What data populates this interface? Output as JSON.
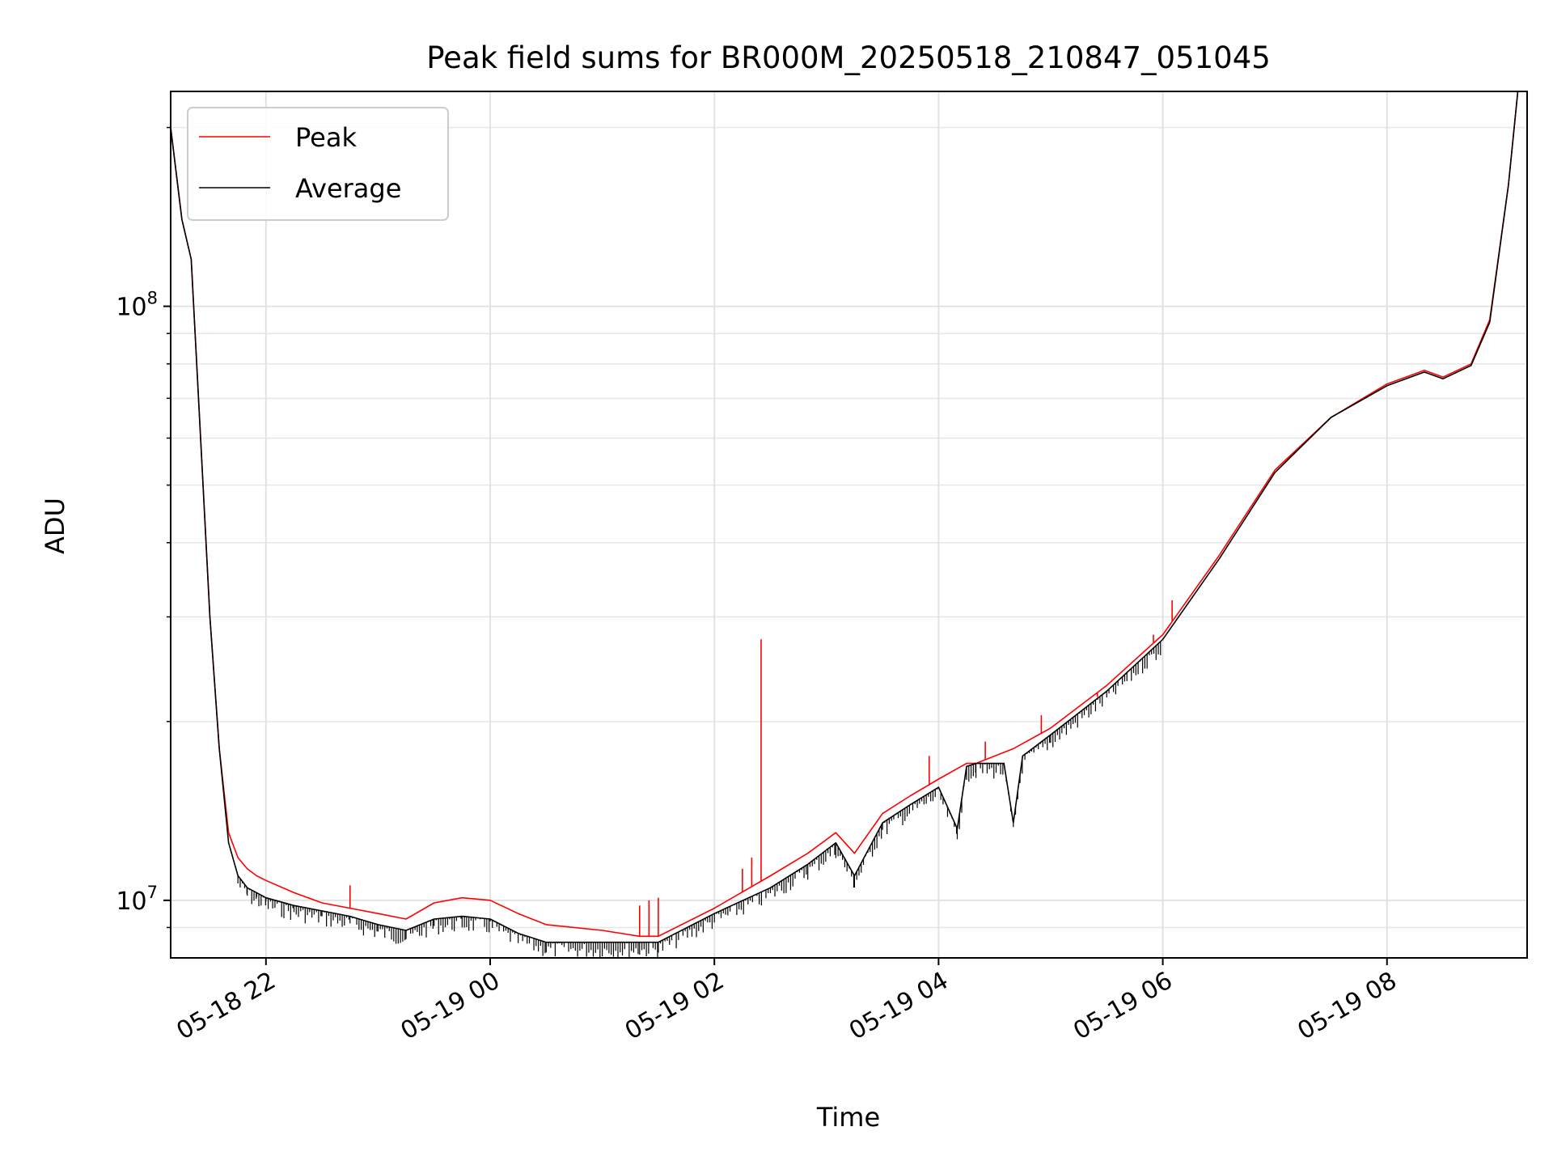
{
  "chart_data": {
    "type": "line",
    "title": "Peak field sums for BR000M_20250518_210847_051045",
    "xlabel": "Time",
    "ylabel": "ADU",
    "yscale": "log",
    "xlim": [
      "05-18 21:09",
      "05-19 09:15"
    ],
    "ylim": [
      8000000,
      230000000
    ],
    "grid": true,
    "legend_position": "upper left",
    "x_ticks": [
      "05-18 22",
      "05-19 00",
      "05-19 02",
      "05-19 04",
      "05-19 06",
      "05-19 08"
    ],
    "y_ticks": [
      {
        "value": 10000000,
        "base": "10",
        "exp": "7"
      },
      {
        "value": 100000000,
        "base": "10",
        "exp": "8"
      }
    ],
    "series": [
      {
        "name": "Peak",
        "color": "#ff0000",
        "x": [
          "05-18 21:09",
          "05-18 21:15",
          "05-18 21:20",
          "05-18 21:25",
          "05-18 21:30",
          "05-18 21:35",
          "05-18 21:40",
          "05-18 21:45",
          "05-18 21:50",
          "05-18 21:55",
          "05-18 22:00",
          "05-18 22:15",
          "05-18 22:30",
          "05-18 22:45",
          "05-18 23:00",
          "05-18 23:15",
          "05-18 23:30",
          "05-18 23:45",
          "05-19 00:00",
          "05-19 00:15",
          "05-19 00:30",
          "05-19 01:00",
          "05-19 01:20",
          "05-19 01:30",
          "05-19 02:00",
          "05-19 02:30",
          "05-19 02:50",
          "05-19 03:05",
          "05-19 03:15",
          "05-19 03:30",
          "05-19 03:45",
          "05-19 04:00",
          "05-19 04:15",
          "05-19 04:20",
          "05-19 04:40",
          "05-19 05:00",
          "05-19 05:30",
          "05-19 06:00",
          "05-19 06:30",
          "05-19 07:00",
          "05-19 07:30",
          "05-19 08:00",
          "05-19 08:20",
          "05-19 08:30",
          "05-19 08:45",
          "05-19 08:55",
          "05-19 09:05",
          "05-19 09:10"
        ],
        "y": [
          200000000,
          140000000,
          120000000,
          60000000,
          30000000,
          18000000,
          13000000,
          11800000,
          11300000,
          11000000,
          10800000,
          10300000,
          9900000,
          9700000,
          9500000,
          9300000,
          9900000,
          10100000,
          10000000,
          9500000,
          9100000,
          8900000,
          8700000,
          8700000,
          9700000,
          11000000,
          12000000,
          13000000,
          12000000,
          14000000,
          15000000,
          16000000,
          17000000,
          17000000,
          18000000,
          19500000,
          23000000,
          28000000,
          38000000,
          53000000,
          65000000,
          74000000,
          78000000,
          76000000,
          80000000,
          95000000,
          160000000,
          230000000
        ],
        "spikes": [
          {
            "x": "05-19 02:25",
            "y": 27500000
          },
          {
            "x": "05-19 02:20",
            "y": 11800000
          },
          {
            "x": "05-19 02:15",
            "y": 11300000
          },
          {
            "x": "05-19 01:30",
            "y": 10100000
          },
          {
            "x": "05-19 01:25",
            "y": 10000000
          },
          {
            "x": "05-19 01:20",
            "y": 9800000
          },
          {
            "x": "05-18 22:45",
            "y": 10600000
          },
          {
            "x": "05-19 03:55",
            "y": 17500000
          },
          {
            "x": "05-19 04:25",
            "y": 18500000
          },
          {
            "x": "05-19 04:55",
            "y": 20500000
          },
          {
            "x": "05-19 05:25",
            "y": 22000000
          },
          {
            "x": "05-19 05:55",
            "y": 28000000
          },
          {
            "x": "05-19 06:05",
            "y": 32000000
          }
        ]
      },
      {
        "name": "Average",
        "color": "#000000",
        "x": [
          "05-18 21:09",
          "05-18 21:15",
          "05-18 21:20",
          "05-18 21:25",
          "05-18 21:30",
          "05-18 21:35",
          "05-18 21:40",
          "05-18 21:45",
          "05-18 21:50",
          "05-18 21:55",
          "05-18 22:00",
          "05-18 22:15",
          "05-18 22:30",
          "05-18 22:45",
          "05-18 23:00",
          "05-18 23:15",
          "05-18 23:30",
          "05-18 23:45",
          "05-19 00:00",
          "05-19 00:15",
          "05-19 00:30",
          "05-19 01:00",
          "05-19 01:20",
          "05-19 01:30",
          "05-19 02:00",
          "05-19 02:30",
          "05-19 02:50",
          "05-19 03:05",
          "05-19 03:15",
          "05-19 03:30",
          "05-19 03:45",
          "05-19 04:00",
          "05-19 04:10",
          "05-19 04:15",
          "05-19 04:20",
          "05-19 04:35",
          "05-19 04:40",
          "05-19 04:45",
          "05-19 05:00",
          "05-19 05:30",
          "05-19 06:00",
          "05-19 06:30",
          "05-19 07:00",
          "05-19 07:30",
          "05-19 08:00",
          "05-19 08:20",
          "05-19 08:30",
          "05-19 08:45",
          "05-19 08:55",
          "05-19 09:05",
          "05-19 09:10"
        ],
        "y": [
          200000000,
          140000000,
          120000000,
          60000000,
          30000000,
          18000000,
          12500000,
          11000000,
          10500000,
          10300000,
          10100000,
          9800000,
          9600000,
          9400000,
          9100000,
          8900000,
          9300000,
          9400000,
          9300000,
          8800000,
          8500000,
          8500000,
          8500000,
          8500000,
          9500000,
          10500000,
          11500000,
          12500000,
          11000000,
          13500000,
          14500000,
          15500000,
          13200000,
          16800000,
          17000000,
          17000000,
          13500000,
          17500000,
          19000000,
          22500000,
          27500000,
          37500000,
          52500000,
          65000000,
          73500000,
          77500000,
          75500000,
          79500000,
          94000000,
          160000000,
          230000000
        ]
      }
    ]
  }
}
